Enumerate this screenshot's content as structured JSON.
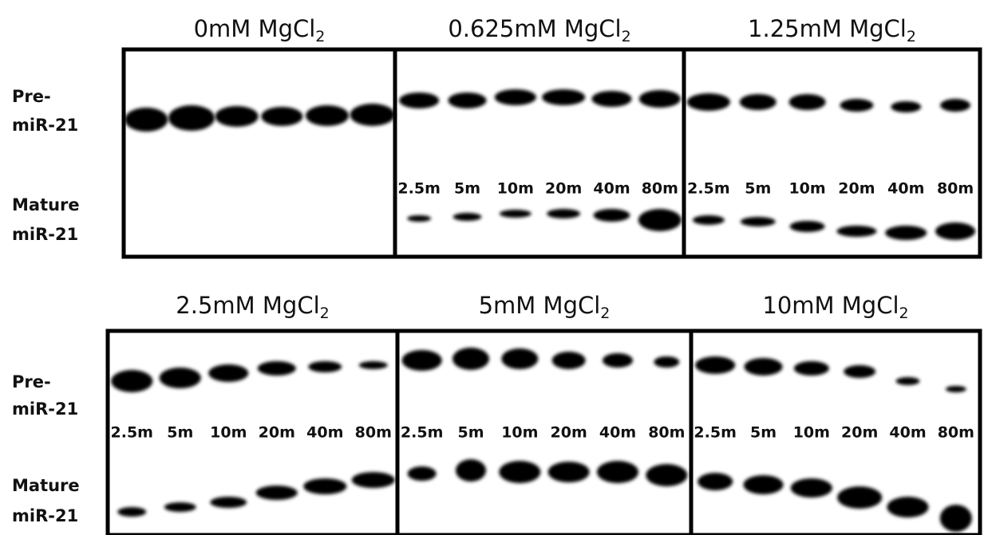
{
  "rows": [
    {
      "labels": [
        "Pre-",
        "miR-21",
        "Mature",
        "miR-21"
      ],
      "panels": [
        {
          "title": "0mM MgCl",
          "title_sub": "2",
          "lanes": []
        },
        {
          "title": "0.625mM MgCl",
          "title_sub": "2",
          "lanes": [
            "2.5m",
            "5m",
            "10m",
            "20m",
            "40m",
            "80m"
          ]
        },
        {
          "title": "1.25mM MgCl",
          "title_sub": "2",
          "lanes": [
            "2.5m",
            "5m",
            "10m",
            "20m",
            "40m",
            "80m"
          ]
        }
      ]
    },
    {
      "labels": [
        "Pre-",
        "miR-21",
        "Mature",
        "miR-21"
      ],
      "panels": [
        {
          "title": "2.5mM MgCl",
          "title_sub": "2",
          "lanes": [
            "2.5m",
            "5m",
            "10m",
            "20m",
            "40m",
            "80m"
          ]
        },
        {
          "title": "5mM MgCl",
          "title_sub": "2",
          "lanes": [
            "2.5m",
            "5m",
            "10m",
            "20m",
            "40m",
            "80m"
          ]
        },
        {
          "title": "10mM MgCl",
          "title_sub": "2",
          "lanes": [
            "2.5m",
            "5m",
            "10m",
            "20m",
            "40m",
            "80m"
          ]
        }
      ]
    }
  ]
}
